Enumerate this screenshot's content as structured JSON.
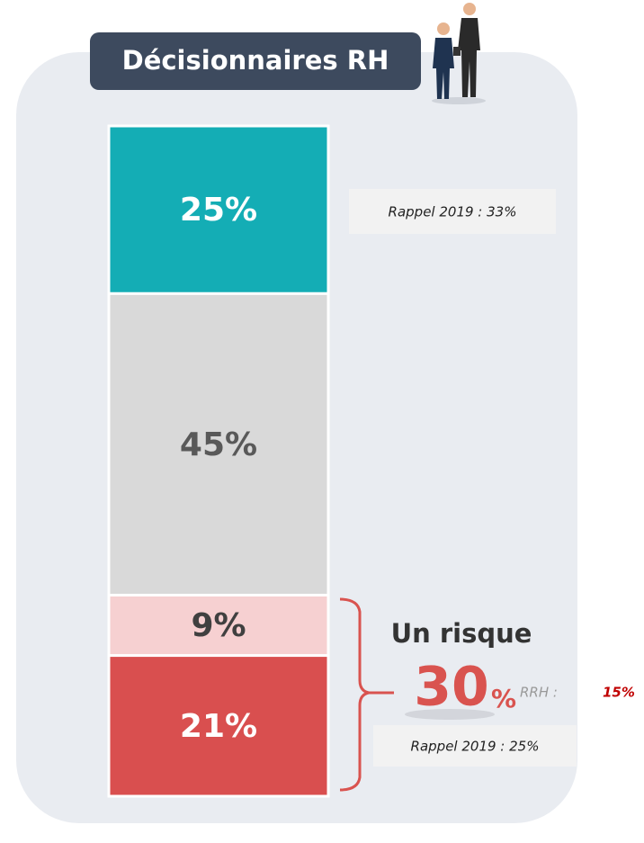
{
  "chart_data": {
    "type": "stacked-column",
    "title": "Décisionnaires RH",
    "values": [
      21,
      9,
      45,
      25
    ],
    "value_labels": [
      "21%",
      "9%",
      "45%",
      "25%"
    ],
    "colors": [
      "#d94f4f",
      "#f6d0d1",
      "#d9d9d9",
      "#14adb5"
    ],
    "label_colors": [
      "#ffffff",
      "#404040",
      "#595959",
      "#ffffff"
    ],
    "ylim": [
      0,
      100
    ],
    "annotations": {
      "top_reminder": "Rappel 2019 : 33%",
      "risk_title": "Un risque",
      "risk_value": 30,
      "risk_unit": "%",
      "rrh_label": "RRH :",
      "rrh_value": "15%",
      "bottom_reminder": "Rappel 2019 : 25%"
    }
  }
}
